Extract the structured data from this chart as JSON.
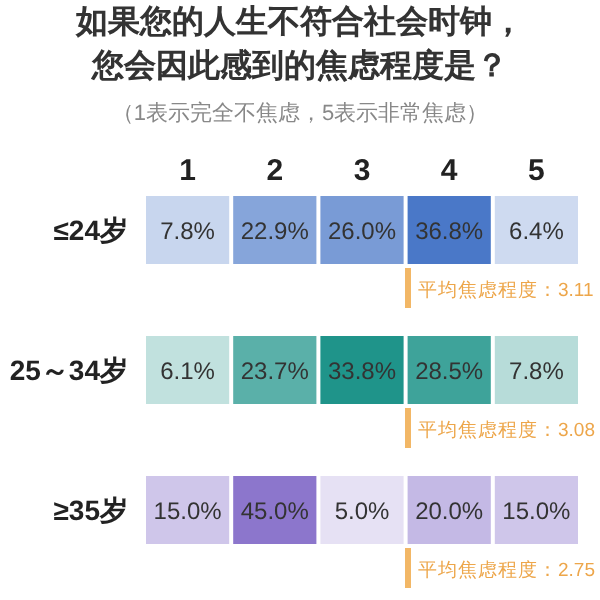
{
  "chart_data": {
    "type": "heatmap",
    "title": "如果您的人生不符合社会时钟，您会因此感到的焦虑程度是？",
    "subtitle": "（1表示完全不焦虑，5表示非常焦虑）",
    "categories": [
      "1",
      "2",
      "3",
      "4",
      "5"
    ],
    "y_categories": [
      "≤24岁",
      "25～34岁",
      "≥35岁"
    ],
    "cells": [
      [
        7.8,
        22.9,
        26.0,
        36.8,
        6.4
      ],
      [
        6.1,
        23.7,
        33.8,
        28.5,
        7.8
      ],
      [
        15.0,
        45.0,
        5.0,
        20.0,
        15.0
      ]
    ],
    "cell_labels": [
      [
        "7.8%",
        "22.9%",
        "26.0%",
        "36.8%",
        "6.4%"
      ],
      [
        "6.1%",
        "23.7%",
        "33.8%",
        "28.5%",
        "7.8%"
      ],
      [
        "15.0%",
        "45.0%",
        "5.0%",
        "20.0%",
        "15.0%"
      ]
    ],
    "colors": [
      "#4a78c8",
      "#1f948a",
      "#8c76cc"
    ],
    "annotations": [
      "平均焦虑程度：3.11",
      "平均焦虑程度：3.08",
      "平均焦虑程度：2.75"
    ]
  }
}
